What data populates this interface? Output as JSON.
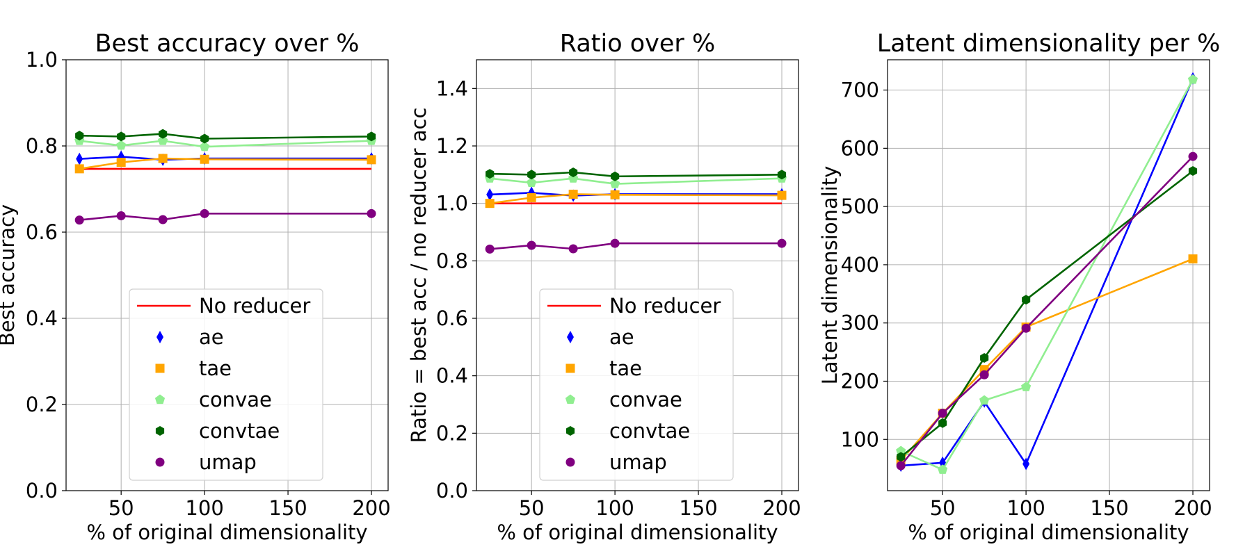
{
  "chart_data": [
    {
      "type": "line",
      "title": "Best accuracy over %",
      "xlabel": "% of original dimensionality",
      "ylabel": "Best accuracy",
      "xlim": [
        17,
        210
      ],
      "ylim": [
        0.0,
        1.0
      ],
      "xticks": [
        50,
        100,
        150,
        200
      ],
      "yticks": [
        0.0,
        0.2,
        0.4,
        0.6,
        0.8,
        1.0
      ],
      "ytick_decimals": 1,
      "grid": true,
      "legend_position": "bottom-center",
      "series": [
        {
          "name": "No reducer",
          "color": "#ff0000",
          "marker": "none",
          "x": [
            25,
            200
          ],
          "y": [
            0.747,
            0.747
          ]
        },
        {
          "name": "ae",
          "color": "#0000ff",
          "marker": "thin_diamond",
          "x": [
            25,
            50,
            75,
            100,
            200
          ],
          "y": [
            0.77,
            0.775,
            0.768,
            0.771,
            0.771
          ]
        },
        {
          "name": "tae",
          "color": "#ffa500",
          "marker": "square",
          "x": [
            25,
            50,
            75,
            100,
            200
          ],
          "y": [
            0.747,
            0.762,
            0.771,
            0.769,
            0.768
          ]
        },
        {
          "name": "convae",
          "color": "#90ee90",
          "marker": "pentagon",
          "x": [
            25,
            50,
            75,
            100,
            200
          ],
          "y": [
            0.812,
            0.801,
            0.812,
            0.798,
            0.812
          ]
        },
        {
          "name": "convtae",
          "color": "#006400",
          "marker": "hexagon",
          "x": [
            25,
            50,
            75,
            100,
            200
          ],
          "y": [
            0.824,
            0.822,
            0.828,
            0.817,
            0.822
          ]
        },
        {
          "name": "umap",
          "color": "#800080",
          "marker": "circle",
          "x": [
            25,
            50,
            75,
            100,
            200
          ],
          "y": [
            0.628,
            0.638,
            0.629,
            0.643,
            0.643
          ]
        }
      ]
    },
    {
      "type": "line",
      "title": "Ratio over %",
      "xlabel": "% of original dimensionality",
      "ylabel": "Ratio = best acc / no reducer acc",
      "xlim": [
        17,
        210
      ],
      "ylim": [
        0.0,
        1.5
      ],
      "xticks": [
        50,
        100,
        150,
        200
      ],
      "yticks": [
        0.0,
        0.2,
        0.4,
        0.6,
        0.8,
        1.0,
        1.2,
        1.4
      ],
      "ytick_decimals": 1,
      "grid": true,
      "legend_position": "bottom-center",
      "series": [
        {
          "name": "No reducer",
          "color": "#ff0000",
          "marker": "none",
          "x": [
            25,
            200
          ],
          "y": [
            1.0,
            1.0
          ]
        },
        {
          "name": "ae",
          "color": "#0000ff",
          "marker": "thin_diamond",
          "x": [
            25,
            50,
            75,
            100,
            200
          ],
          "y": [
            1.031,
            1.037,
            1.027,
            1.032,
            1.032
          ]
        },
        {
          "name": "tae",
          "color": "#ffa500",
          "marker": "square",
          "x": [
            25,
            50,
            75,
            100,
            200
          ],
          "y": [
            1.0,
            1.02,
            1.032,
            1.03,
            1.028
          ]
        },
        {
          "name": "convae",
          "color": "#90ee90",
          "marker": "pentagon",
          "x": [
            25,
            50,
            75,
            100,
            200
          ],
          "y": [
            1.087,
            1.072,
            1.087,
            1.068,
            1.087
          ]
        },
        {
          "name": "convtae",
          "color": "#006400",
          "marker": "hexagon",
          "x": [
            25,
            50,
            75,
            100,
            200
          ],
          "y": [
            1.103,
            1.1,
            1.108,
            1.094,
            1.1
          ]
        },
        {
          "name": "umap",
          "color": "#800080",
          "marker": "circle",
          "x": [
            25,
            50,
            75,
            100,
            200
          ],
          "y": [
            0.841,
            0.854,
            0.842,
            0.861,
            0.861
          ]
        }
      ]
    },
    {
      "type": "line",
      "title": "Latent dimensionality per %",
      "xlabel": "% of original dimensionality",
      "ylabel": "Latent dimensionality",
      "xlim": [
        17,
        210
      ],
      "ylim": [
        12,
        752
      ],
      "xticks": [
        50,
        100,
        150,
        200
      ],
      "yticks": [
        100,
        200,
        300,
        400,
        500,
        600,
        700
      ],
      "ytick_decimals": 0,
      "grid": true,
      "legend_position": "none",
      "series": [
        {
          "name": "ae",
          "color": "#0000ff",
          "marker": "thin_diamond",
          "x": [
            25,
            50,
            75,
            100,
            200
          ],
          "y": [
            55,
            60,
            165,
            58,
            720
          ]
        },
        {
          "name": "tae",
          "color": "#ffa500",
          "marker": "square",
          "x": [
            25,
            50,
            75,
            100,
            200
          ],
          "y": [
            64,
            145,
            220,
            293,
            410
          ]
        },
        {
          "name": "convae",
          "color": "#90ee90",
          "marker": "pentagon",
          "x": [
            25,
            50,
            75,
            100,
            200
          ],
          "y": [
            80,
            48,
            167,
            190,
            718
          ]
        },
        {
          "name": "convtae",
          "color": "#006400",
          "marker": "hexagon",
          "x": [
            25,
            50,
            75,
            100,
            200
          ],
          "y": [
            70,
            128,
            240,
            340,
            561
          ]
        },
        {
          "name": "umap",
          "color": "#800080",
          "marker": "circle",
          "x": [
            25,
            50,
            75,
            100,
            200
          ],
          "y": [
            55,
            145,
            211,
            291,
            586
          ]
        }
      ]
    }
  ]
}
